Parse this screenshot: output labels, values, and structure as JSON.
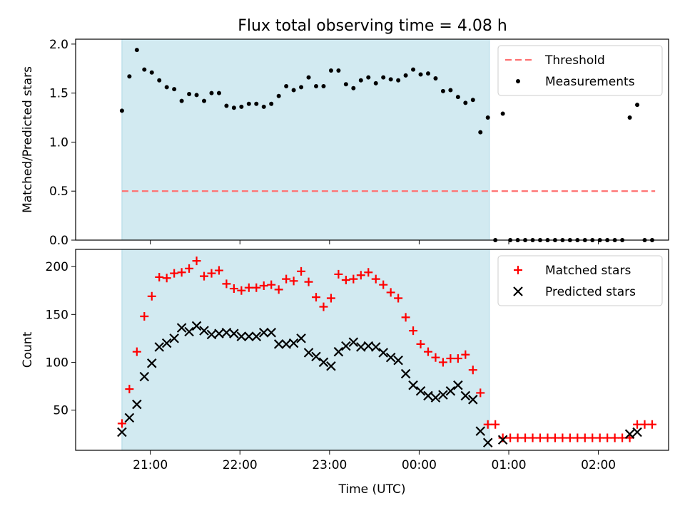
{
  "title": "Flux total observing time = 4.08 h",
  "colors": {
    "background_band": "#add8e6",
    "threshold_line": "#ff7070",
    "measurements": "#000000",
    "matched": "#ff0000",
    "predicted": "#000000"
  },
  "chart_data": [
    {
      "type": "scatter",
      "name": "ratio",
      "xlabel": "",
      "ylabel": "Matched/Predicted stars",
      "ylim": [
        0,
        2.05
      ],
      "yticks": [
        "0.0",
        "0.5",
        "1.0",
        "1.5",
        "2.0"
      ],
      "ytick_values": [
        0,
        0.5,
        1.0,
        1.5,
        2.0
      ],
      "legend_placement": "top-right",
      "shaded_span": {
        "start": "20:41",
        "end": "00:47"
      },
      "threshold": {
        "name": "Threshold",
        "value": 0.5,
        "x_start": "20:41",
        "x_end": "02:38"
      },
      "series": [
        {
          "name": "Measurements",
          "x": [
            "20:41",
            "20:46",
            "20:51",
            "20:56",
            "21:01",
            "21:06",
            "21:11",
            "21:16",
            "21:21",
            "21:26",
            "21:31",
            "21:36",
            "21:41",
            "21:46",
            "21:51",
            "21:56",
            "22:01",
            "22:06",
            "22:11",
            "22:16",
            "22:21",
            "22:26",
            "22:31",
            "22:36",
            "22:41",
            "22:46",
            "22:51",
            "22:56",
            "23:01",
            "23:06",
            "23:11",
            "23:16",
            "23:21",
            "23:26",
            "23:31",
            "23:36",
            "23:41",
            "23:46",
            "23:51",
            "23:56",
            "00:01",
            "00:06",
            "00:11",
            "00:16",
            "00:21",
            "00:26",
            "00:31",
            "00:36",
            "00:41",
            "00:46",
            "00:51",
            "00:56",
            "01:01",
            "01:06",
            "01:11",
            "01:16",
            "01:21",
            "01:26",
            "01:31",
            "01:36",
            "01:41",
            "01:46",
            "01:51",
            "01:56",
            "02:01",
            "02:06",
            "02:11",
            "02:16",
            "02:21",
            "02:26",
            "02:31",
            "02:36"
          ],
          "y": [
            1.32,
            1.67,
            1.94,
            1.74,
            1.71,
            1.63,
            1.56,
            1.54,
            1.42,
            1.49,
            1.48,
            1.42,
            1.5,
            1.5,
            1.37,
            1.35,
            1.36,
            1.39,
            1.39,
            1.36,
            1.39,
            1.47,
            1.57,
            1.53,
            1.56,
            1.66,
            1.57,
            1.57,
            1.73,
            1.73,
            1.59,
            1.55,
            1.63,
            1.66,
            1.6,
            1.66,
            1.64,
            1.63,
            1.68,
            1.74,
            1.69,
            1.7,
            1.65,
            1.52,
            1.53,
            1.46,
            1.4,
            1.43,
            1.1,
            1.25,
            0.0,
            1.29,
            0.0,
            0.0,
            0.0,
            0.0,
            0.0,
            0.0,
            0.0,
            0.0,
            0.0,
            0.0,
            0.0,
            0.0,
            0.0,
            0.0,
            0.0,
            0.0,
            1.25,
            1.38,
            0.0,
            0.0
          ]
        }
      ]
    },
    {
      "type": "scatter",
      "name": "counts",
      "xlabel": "Time (UTC)",
      "ylabel": "Count",
      "ylim": [
        8,
        218
      ],
      "yticks": [
        "50",
        "100",
        "150",
        "200"
      ],
      "ytick_values": [
        50,
        100,
        150,
        200
      ],
      "xticks": [
        "21:00",
        "22:00",
        "23:00",
        "00:00",
        "01:00",
        "02:00"
      ],
      "legend_placement": "top-right",
      "shaded_span": {
        "start": "20:41",
        "end": "00:47"
      },
      "series": [
        {
          "name": "Matched stars",
          "marker": "plus",
          "x": [
            "20:41",
            "20:46",
            "20:51",
            "20:56",
            "21:01",
            "21:06",
            "21:11",
            "21:16",
            "21:21",
            "21:26",
            "21:31",
            "21:36",
            "21:41",
            "21:46",
            "21:51",
            "21:56",
            "22:01",
            "22:06",
            "22:11",
            "22:16",
            "22:21",
            "22:26",
            "22:31",
            "22:36",
            "22:41",
            "22:46",
            "22:51",
            "22:56",
            "23:01",
            "23:06",
            "23:11",
            "23:16",
            "23:21",
            "23:26",
            "23:31",
            "23:36",
            "23:41",
            "23:46",
            "23:51",
            "23:56",
            "00:01",
            "00:06",
            "00:11",
            "00:16",
            "00:21",
            "00:26",
            "00:31",
            "00:36",
            "00:41",
            "00:46",
            "00:51",
            "00:56",
            "01:01",
            "01:06",
            "01:11",
            "01:16",
            "01:21",
            "01:26",
            "01:31",
            "01:36",
            "01:41",
            "01:46",
            "01:51",
            "01:56",
            "02:01",
            "02:06",
            "02:11",
            "02:16",
            "02:21",
            "02:26",
            "02:31",
            "02:36"
          ],
          "y": [
            36,
            72,
            111,
            148,
            169,
            189,
            188,
            193,
            194,
            198,
            206,
            190,
            193,
            196,
            182,
            177,
            175,
            178,
            178,
            180,
            181,
            176,
            187,
            185,
            195,
            184,
            168,
            158,
            167,
            192,
            186,
            187,
            191,
            194,
            187,
            181,
            173,
            167,
            147,
            133,
            119,
            111,
            105,
            100,
            104,
            104,
            108,
            92,
            68,
            35,
            35,
            21,
            21,
            21,
            21,
            21,
            21,
            21,
            21,
            21,
            21,
            21,
            21,
            21,
            21,
            21,
            21,
            21,
            21,
            35,
            35,
            35
          ]
        },
        {
          "name": "Predicted stars",
          "marker": "x",
          "x": [
            "20:41",
            "20:46",
            "20:51",
            "20:56",
            "21:01",
            "21:06",
            "21:11",
            "21:16",
            "21:21",
            "21:26",
            "21:31",
            "21:36",
            "21:41",
            "21:46",
            "21:51",
            "21:56",
            "22:01",
            "22:06",
            "22:11",
            "22:16",
            "22:21",
            "22:26",
            "22:31",
            "22:36",
            "22:41",
            "22:46",
            "22:51",
            "22:56",
            "23:01",
            "23:06",
            "23:11",
            "23:16",
            "23:21",
            "23:26",
            "23:31",
            "23:36",
            "23:41",
            "23:46",
            "23:51",
            "23:56",
            "00:01",
            "00:06",
            "00:11",
            "00:16",
            "00:21",
            "00:26",
            "00:31",
            "00:36",
            "00:41",
            "00:46",
            "00:56",
            "02:21",
            "02:26"
          ],
          "y": [
            27,
            42,
            56,
            85,
            99,
            116,
            120,
            125,
            136,
            132,
            138,
            133,
            129,
            130,
            131,
            130,
            127,
            127,
            127,
            131,
            131,
            119,
            119,
            120,
            125,
            110,
            106,
            100,
            96,
            111,
            117,
            121,
            116,
            117,
            116,
            110,
            105,
            102,
            88,
            76,
            70,
            65,
            63,
            66,
            70,
            76,
            65,
            61,
            28,
            16,
            19,
            25,
            27
          ]
        }
      ]
    }
  ]
}
